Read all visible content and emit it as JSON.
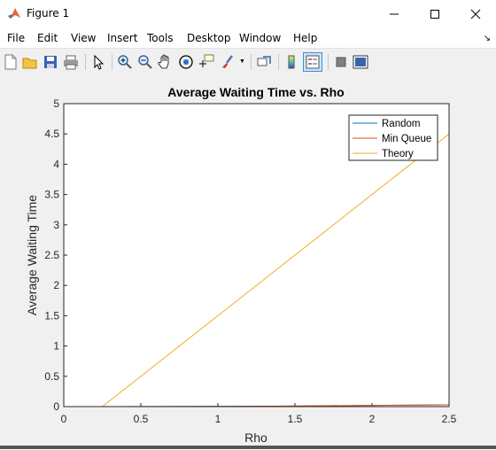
{
  "window": {
    "title": "Figure 1"
  },
  "menu": [
    "File",
    "Edit",
    "View",
    "Insert",
    "Tools",
    "Desktop",
    "Window",
    "Help"
  ],
  "toolbar": [
    {
      "icon": "new-figure-icon"
    },
    {
      "icon": "open-file-icon"
    },
    {
      "icon": "save-icon"
    },
    {
      "icon": "print-icon"
    },
    {
      "icon": "pointer-icon"
    },
    {
      "icon": "zoom-in-icon"
    },
    {
      "icon": "zoom-out-icon"
    },
    {
      "icon": "pan-hand-icon"
    },
    {
      "icon": "rotate-3d-icon"
    },
    {
      "icon": "data-cursor-icon"
    },
    {
      "icon": "brush-icon"
    },
    {
      "icon": "link-plot-icon"
    },
    {
      "icon": "colorbar-icon"
    },
    {
      "icon": "legend-icon"
    },
    {
      "icon": "hide-plot-tools-icon"
    },
    {
      "icon": "show-plot-tools-icon"
    }
  ],
  "chart_data": {
    "type": "line",
    "title": "Average Waiting Time vs. Rho",
    "xlabel": "Rho",
    "ylabel": "Average Waiting Time",
    "xlim": [
      0,
      2.5
    ],
    "ylim": [
      0,
      5
    ],
    "xticks": [
      "0",
      "0.5",
      "1",
      "1.5",
      "2",
      "2.5"
    ],
    "yticks": [
      "0",
      "0.5",
      "1",
      "1.5",
      "2",
      "2.5",
      "3",
      "3.5",
      "4",
      "4.5",
      "5"
    ],
    "grid": false,
    "legend_position": "top-right",
    "series": [
      {
        "name": "Random",
        "color": "#0072bd",
        "x": [
          0.25,
          1.0,
          1.5,
          2.0,
          2.5
        ],
        "y": [
          0.0,
          0.003,
          0.01,
          0.02,
          0.03
        ]
      },
      {
        "name": "Min Queue",
        "color": "#d95319",
        "x": [
          0.25,
          1.0,
          1.5,
          2.0,
          2.5
        ],
        "y": [
          0.0,
          0.003,
          0.01,
          0.02,
          0.03
        ]
      },
      {
        "name": "Theory",
        "color": "#edb120",
        "x": [
          0.25,
          2.5
        ],
        "y": [
          0.0,
          4.5
        ]
      }
    ]
  }
}
